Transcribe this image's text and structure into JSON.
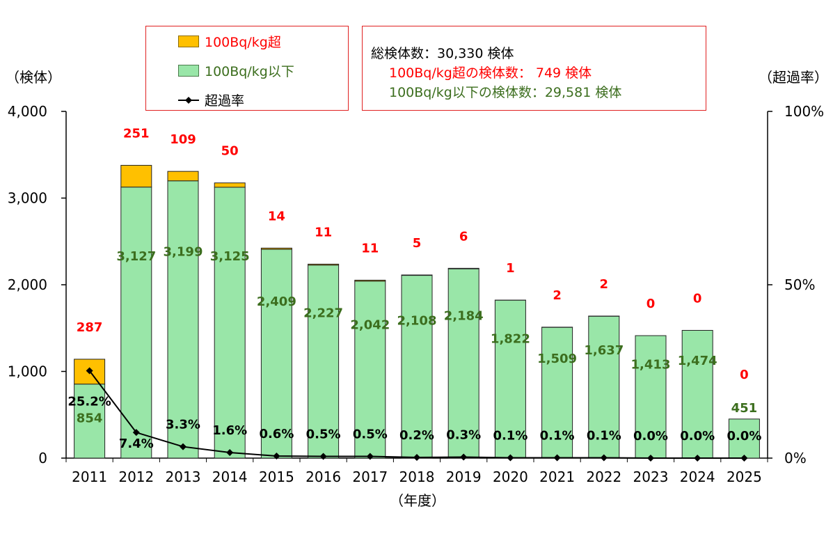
{
  "chart_data": {
    "type": "bar",
    "stacked": true,
    "categories": [
      "2011",
      "2012",
      "2013",
      "2014",
      "2015",
      "2016",
      "2017",
      "2018",
      "2019",
      "2020",
      "2021",
      "2022",
      "2023",
      "2024",
      "2025"
    ],
    "series": [
      {
        "name": "100Bq/kg以下",
        "color": "#99e6a8",
        "values": [
          854,
          3127,
          3199,
          3125,
          2409,
          2227,
          2042,
          2108,
          2184,
          1822,
          1509,
          1637,
          1413,
          1474,
          451
        ]
      },
      {
        "name": "100Bq/kg超",
        "color": "#ffc000",
        "values": [
          287,
          251,
          109,
          50,
          14,
          11,
          11,
          5,
          6,
          1,
          2,
          2,
          0,
          0,
          0
        ]
      }
    ],
    "line_series": {
      "name": "超過率",
      "axis": "right",
      "values": [
        25.2,
        7.4,
        3.3,
        1.6,
        0.6,
        0.5,
        0.5,
        0.2,
        0.3,
        0.1,
        0.1,
        0.1,
        0.0,
        0.0,
        0.0
      ]
    },
    "value_labels_below": [
      "854",
      "3,127",
      "3,199",
      "3,125",
      "2,409",
      "2,227",
      "2,042",
      "2,108",
      "2,184",
      "1,822",
      "1,509",
      "1,637",
      "1,413",
      "1,474",
      "451"
    ],
    "value_labels_above": [
      "287",
      "251",
      "109",
      "50",
      "14",
      "11",
      "11",
      "5",
      "6",
      "1",
      "2",
      "2",
      "0",
      "0",
      "0"
    ],
    "rate_labels": [
      "25.2%",
      "7.4%",
      "3.3%",
      "1.6%",
      "0.6%",
      "0.5%",
      "0.5%",
      "0.2%",
      "0.3%",
      "0.1%",
      "0.1%",
      "0.1%",
      "0.0%",
      "0.0%",
      "0.0%"
    ],
    "ylabel": "（検体）",
    "y2label": "（超過率）",
    "xlabel": "（年度）",
    "ylim": [
      0,
      4000
    ],
    "yticks": [
      "0",
      "1,000",
      "2,000",
      "3,000",
      "4,000"
    ],
    "y2lim": [
      0,
      100
    ],
    "y2ticks": [
      "0%",
      "50%",
      "100%"
    ],
    "grid": false
  },
  "legend": {
    "items": [
      {
        "label": "100Bq/kg超",
        "color": "#ffc000",
        "text_color": "#ff0000",
        "kind": "box"
      },
      {
        "label": "100Bq/kg以下",
        "color": "#99e6a8",
        "text_color": "#3c6e1e",
        "kind": "box"
      },
      {
        "label": "超過率",
        "color": "#000000",
        "text_color": "#000000",
        "kind": "line"
      }
    ]
  },
  "summary": {
    "total": "総検体数：30,330 検体",
    "over": "100Bq/kg超の検体数： 749 検体",
    "under": "100Bq/kg以下の検体数：29,581 検体"
  },
  "colors": {
    "over_label": "#ff0000",
    "under_label": "#3c6e1e",
    "rate_label": "#000000",
    "border": "#e02020"
  }
}
